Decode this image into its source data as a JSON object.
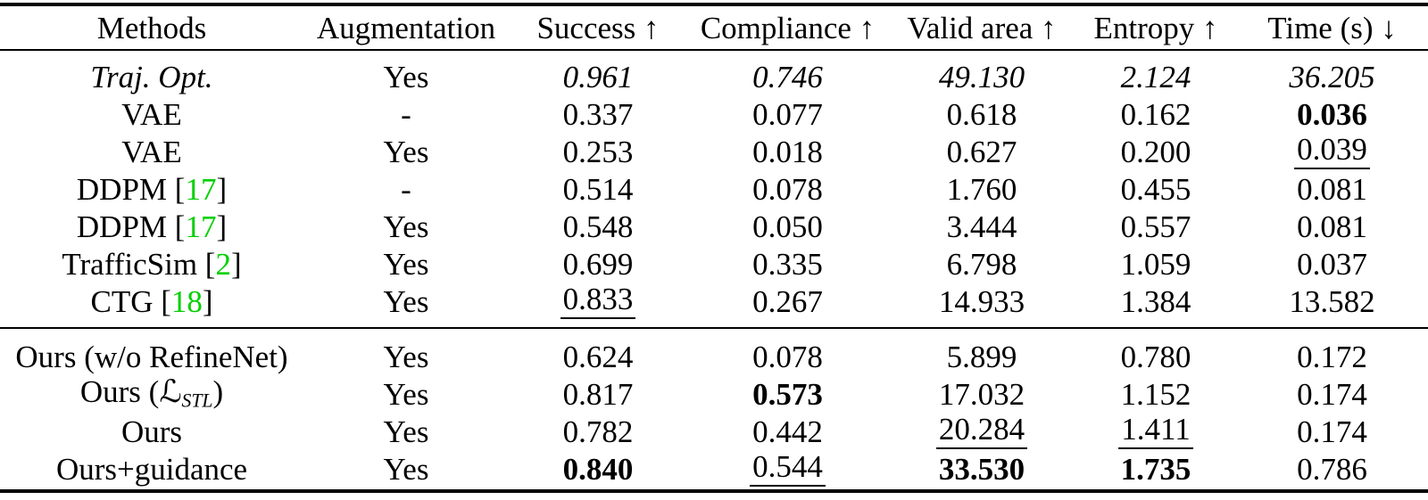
{
  "page": {
    "background": "#ffffff",
    "text_color": "#000000",
    "citation_color": "#00d000"
  },
  "table": {
    "headers": [
      "Methods",
      "Augmentation",
      "Success ↑",
      "Compliance ↑",
      "Valid area ↑",
      "Entropy ↑",
      "Time (s) ↓"
    ],
    "legend_hint": {
      "bold_means": "best value",
      "underline_means": "second best value",
      "italic_means": "reference method (Traj. Opt.)"
    },
    "sections": [
      {
        "rows": [
          {
            "italic": true,
            "method": [
              {
                "t": "Traj. Opt.",
                "y": "n"
              }
            ],
            "cells": [
              {
                "t": "Yes",
                "s": ""
              },
              {
                "t": "0.961",
                "s": "i"
              },
              {
                "t": "0.746",
                "s": "i"
              },
              {
                "t": "49.130",
                "s": "i"
              },
              {
                "t": "2.124",
                "s": "i"
              },
              {
                "t": "36.205",
                "s": "i"
              }
            ]
          },
          {
            "italic": false,
            "method": [
              {
                "t": "VAE",
                "y": "n"
              }
            ],
            "cells": [
              {
                "t": "-",
                "s": ""
              },
              {
                "t": "0.337",
                "s": ""
              },
              {
                "t": "0.077",
                "s": ""
              },
              {
                "t": "0.618",
                "s": ""
              },
              {
                "t": "0.162",
                "s": ""
              },
              {
                "t": "0.036",
                "s": "b"
              }
            ]
          },
          {
            "italic": false,
            "method": [
              {
                "t": "VAE",
                "y": "n"
              }
            ],
            "cells": [
              {
                "t": "Yes",
                "s": ""
              },
              {
                "t": "0.253",
                "s": ""
              },
              {
                "t": "0.018",
                "s": ""
              },
              {
                "t": "0.627",
                "s": ""
              },
              {
                "t": "0.200",
                "s": ""
              },
              {
                "t": "0.039",
                "s": "u"
              }
            ]
          },
          {
            "italic": false,
            "method": [
              {
                "t": "DDPM [",
                "y": "n"
              },
              {
                "t": "17",
                "y": "cite"
              },
              {
                "t": "]",
                "y": "n"
              }
            ],
            "cells": [
              {
                "t": "-",
                "s": ""
              },
              {
                "t": "0.514",
                "s": ""
              },
              {
                "t": "0.078",
                "s": ""
              },
              {
                "t": "1.760",
                "s": ""
              },
              {
                "t": "0.455",
                "s": ""
              },
              {
                "t": "0.081",
                "s": ""
              }
            ]
          },
          {
            "italic": false,
            "method": [
              {
                "t": "DDPM [",
                "y": "n"
              },
              {
                "t": "17",
                "y": "cite"
              },
              {
                "t": "]",
                "y": "n"
              }
            ],
            "cells": [
              {
                "t": "Yes",
                "s": ""
              },
              {
                "t": "0.548",
                "s": ""
              },
              {
                "t": "0.050",
                "s": ""
              },
              {
                "t": "3.444",
                "s": ""
              },
              {
                "t": "0.557",
                "s": ""
              },
              {
                "t": "0.081",
                "s": ""
              }
            ]
          },
          {
            "italic": false,
            "method": [
              {
                "t": "TrafficSim [",
                "y": "n"
              },
              {
                "t": "2",
                "y": "cite"
              },
              {
                "t": "]",
                "y": "n"
              }
            ],
            "cells": [
              {
                "t": "Yes",
                "s": ""
              },
              {
                "t": "0.699",
                "s": ""
              },
              {
                "t": "0.335",
                "s": ""
              },
              {
                "t": "6.798",
                "s": ""
              },
              {
                "t": "1.059",
                "s": ""
              },
              {
                "t": "0.037",
                "s": ""
              }
            ]
          },
          {
            "italic": false,
            "method": [
              {
                "t": "CTG [",
                "y": "n"
              },
              {
                "t": "18",
                "y": "cite"
              },
              {
                "t": "]",
                "y": "n"
              }
            ],
            "cells": [
              {
                "t": "Yes",
                "s": ""
              },
              {
                "t": "0.833",
                "s": "u"
              },
              {
                "t": "0.267",
                "s": ""
              },
              {
                "t": "14.933",
                "s": ""
              },
              {
                "t": "1.384",
                "s": ""
              },
              {
                "t": "13.582",
                "s": ""
              }
            ]
          }
        ]
      },
      {
        "rows": [
          {
            "italic": false,
            "method": [
              {
                "t": "Ours (w/o RefineNet)",
                "y": "n"
              }
            ],
            "cells": [
              {
                "t": "Yes",
                "s": ""
              },
              {
                "t": "0.624",
                "s": ""
              },
              {
                "t": "0.078",
                "s": ""
              },
              {
                "t": "5.899",
                "s": ""
              },
              {
                "t": "0.780",
                "s": ""
              },
              {
                "t": "0.172",
                "s": ""
              }
            ]
          },
          {
            "italic": false,
            "method": [
              {
                "t": "Ours (",
                "y": "n"
              },
              {
                "t": "ℒ",
                "y": "scr"
              },
              {
                "t": "STL",
                "y": "sub"
              },
              {
                "t": ")",
                "y": "n"
              }
            ],
            "cells": [
              {
                "t": "Yes",
                "s": ""
              },
              {
                "t": "0.817",
                "s": ""
              },
              {
                "t": "0.573",
                "s": "b"
              },
              {
                "t": "17.032",
                "s": ""
              },
              {
                "t": "1.152",
                "s": ""
              },
              {
                "t": "0.174",
                "s": ""
              }
            ]
          },
          {
            "italic": false,
            "method": [
              {
                "t": "Ours",
                "y": "n"
              }
            ],
            "cells": [
              {
                "t": "Yes",
                "s": ""
              },
              {
                "t": "0.782",
                "s": ""
              },
              {
                "t": "0.442",
                "s": ""
              },
              {
                "t": "20.284",
                "s": "u"
              },
              {
                "t": "1.411",
                "s": "u"
              },
              {
                "t": "0.174",
                "s": ""
              }
            ]
          },
          {
            "italic": false,
            "method": [
              {
                "t": "Ours+guidance",
                "y": "n"
              }
            ],
            "cells": [
              {
                "t": "Yes",
                "s": ""
              },
              {
                "t": "0.840",
                "s": "b"
              },
              {
                "t": "0.544",
                "s": "u"
              },
              {
                "t": "33.530",
                "s": "b"
              },
              {
                "t": "1.735",
                "s": "b"
              },
              {
                "t": "0.786",
                "s": ""
              }
            ]
          }
        ]
      }
    ]
  },
  "chart_data": {
    "type": "table",
    "title": "Method comparison results",
    "columns": [
      "Methods",
      "Augmentation",
      "Success",
      "Compliance",
      "Valid area",
      "Entropy",
      "Time (s)"
    ],
    "column_directions": [
      "",
      "",
      "higher-better",
      "higher-better",
      "higher-better",
      "higher-better",
      "lower-better"
    ],
    "rows": [
      [
        "Traj. Opt.",
        "Yes",
        0.961,
        0.746,
        49.13,
        2.124,
        36.205
      ],
      [
        "VAE",
        "-",
        0.337,
        0.077,
        0.618,
        0.162,
        0.036
      ],
      [
        "VAE",
        "Yes",
        0.253,
        0.018,
        0.627,
        0.2,
        0.039
      ],
      [
        "DDPM [17]",
        "-",
        0.514,
        0.078,
        1.76,
        0.455,
        0.081
      ],
      [
        "DDPM [17]",
        "Yes",
        0.548,
        0.05,
        3.444,
        0.557,
        0.081
      ],
      [
        "TrafficSim [2]",
        "Yes",
        0.699,
        0.335,
        6.798,
        1.059,
        0.037
      ],
      [
        "CTG [18]",
        "Yes",
        0.833,
        0.267,
        14.933,
        1.384,
        13.582
      ],
      [
        "Ours (w/o RefineNet)",
        "Yes",
        0.624,
        0.078,
        5.899,
        0.78,
        0.172
      ],
      [
        "Ours (L_STL)",
        "Yes",
        0.817,
        0.573,
        17.032,
        1.152,
        0.174
      ],
      [
        "Ours",
        "Yes",
        0.782,
        0.442,
        20.284,
        1.411,
        0.174
      ],
      [
        "Ours+guidance",
        "Yes",
        0.84,
        0.544,
        33.53,
        1.735,
        0.786
      ]
    ]
  }
}
